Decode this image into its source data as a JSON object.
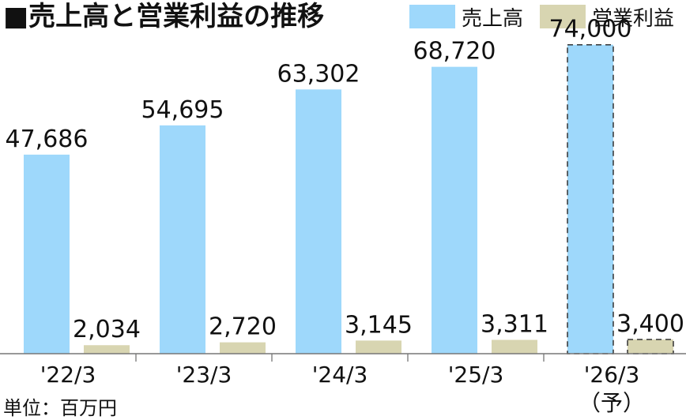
{
  "chart_data": {
    "type": "bar",
    "title": "■売上高と営業利益の推移",
    "unit_label": "単位：百万円",
    "categories": [
      "'22/3",
      "'23/3",
      "'24/3",
      "'25/3",
      "'26/3"
    ],
    "category_notes": [
      "",
      "",
      "",
      "",
      "（予）"
    ],
    "forecast_index": 4,
    "series": [
      {
        "name": "売上高",
        "color": "#9ed8fb",
        "values": [
          47686,
          54695,
          63302,
          68720,
          74000
        ],
        "labels": [
          "47,686",
          "54,695",
          "63,302",
          "68,720",
          "74,000"
        ]
      },
      {
        "name": "営業利益",
        "color": "#d8d5b1",
        "values": [
          2034,
          2720,
          3145,
          3311,
          3400
        ],
        "labels": [
          "2,034",
          "2,720",
          "3,145",
          "3,311",
          "3,400"
        ]
      }
    ],
    "ylim": [
      0,
      80000
    ],
    "grid": false,
    "legend_position": "top-right"
  }
}
